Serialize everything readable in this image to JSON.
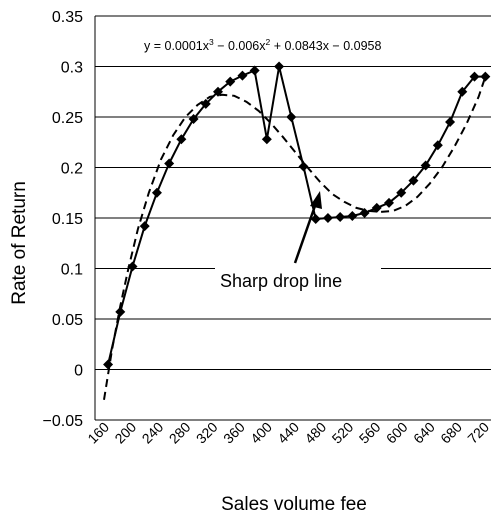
{
  "chart_data": {
    "type": "line",
    "title": "",
    "xlabel": "Sales volume fee",
    "ylabel": "Rate of Return",
    "xlim": [
      160,
      720
    ],
    "ylim": [
      -0.05,
      0.35
    ],
    "y_ticks": [
      "0.35",
      "0.3",
      "0.25",
      "0.2",
      "0.15",
      "0.1",
      "0.05",
      "0",
      "−0.05"
    ],
    "y_tick_values": [
      0.35,
      0.3,
      0.25,
      0.2,
      0.15,
      0.1,
      0.05,
      0,
      -0.05
    ],
    "x_ticks": [
      "160",
      "200",
      "240",
      "280",
      "320",
      "360",
      "400",
      "440",
      "480",
      "520",
      "560",
      "600",
      "640",
      "680",
      "720"
    ],
    "x_tick_values": [
      160,
      200,
      240,
      280,
      320,
      360,
      400,
      440,
      480,
      520,
      560,
      600,
      640,
      680,
      720
    ],
    "grid": "horizontal",
    "series": [
      {
        "style": "solid-with-diamond-markers",
        "x": [
          166,
          184,
          202,
          220,
          238,
          256,
          274,
          292,
          310,
          328,
          346,
          364,
          382,
          400,
          418,
          436,
          454,
          472,
          490,
          508,
          526,
          544,
          562,
          580,
          598,
          616,
          634,
          652,
          670,
          688,
          706,
          722
        ],
        "y": [
          0.005,
          0.057,
          0.102,
          0.142,
          0.175,
          0.204,
          0.228,
          0.248,
          0.263,
          0.275,
          0.285,
          0.291,
          0.296,
          0.228,
          0.3,
          0.25,
          0.201,
          0.149,
          0.15,
          0.151,
          0.152,
          0.155,
          0.16,
          0.165,
          0.175,
          0.187,
          0.202,
          0.222,
          0.245,
          0.275,
          0.29,
          0.29
        ]
      },
      {
        "style": "dashed-trendline",
        "equation": {
          "y_prefix": "y = ",
          "t1_coef": "0.0001x",
          "t1_exp": "3",
          "t2_coef": " − 0.006x",
          "t2_exp": "2",
          "rest": " + 0.0843x − 0.0958"
        },
        "x": [
          160,
          172,
          184,
          196,
          210,
          226,
          244,
          262,
          280,
          298,
          316,
          334,
          352,
          370,
          388,
          406,
          424,
          442,
          460,
          478,
          496,
          514,
          532,
          550,
          568,
          586,
          604,
          622,
          640,
          658,
          676,
          694,
          712,
          722
        ],
        "y": [
          -0.03,
          0.02,
          0.063,
          0.1,
          0.139,
          0.175,
          0.208,
          0.232,
          0.25,
          0.262,
          0.27,
          0.272,
          0.271,
          0.265,
          0.256,
          0.244,
          0.23,
          0.215,
          0.2,
          0.186,
          0.174,
          0.166,
          0.16,
          0.157,
          0.156,
          0.157,
          0.162,
          0.171,
          0.184,
          0.2,
          0.22,
          0.243,
          0.27,
          0.29
        ]
      }
    ],
    "annotations": [
      {
        "text": "Sharp drop line",
        "arrow_to": {
          "x": 490,
          "y": 0.201
        }
      }
    ]
  }
}
